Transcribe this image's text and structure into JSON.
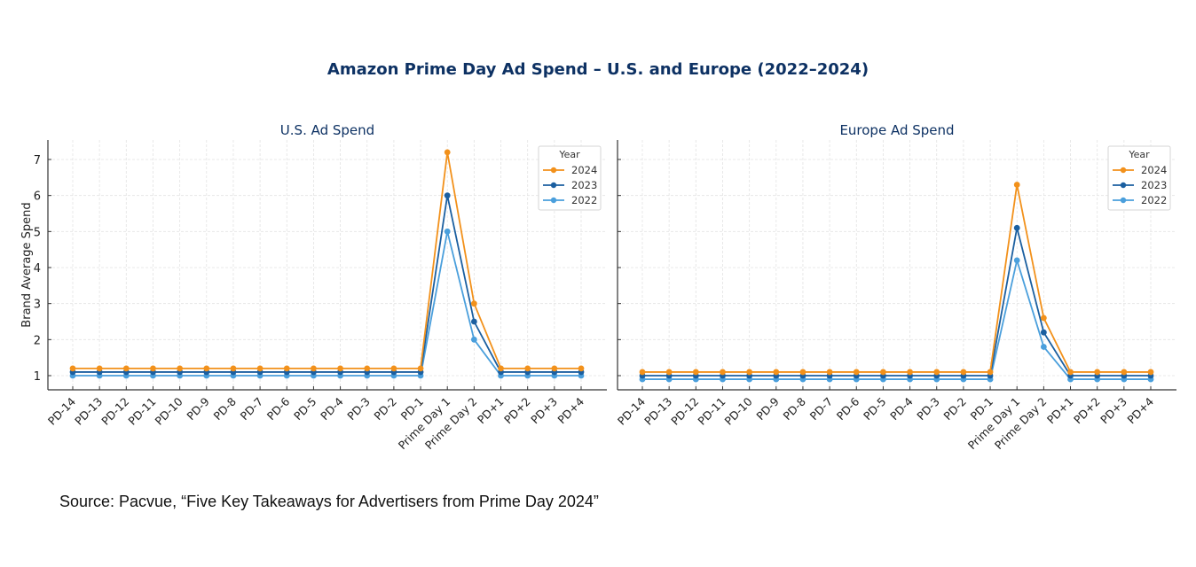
{
  "title": "Amazon Prime Day Ad Spend – U.S. and Europe (2022–2024)",
  "source": "Source: Pacvue, “Five Key Takeaways for Advertisers from Prime Day 2024”",
  "colors": {
    "2024": "#f2911b",
    "2023": "#1b5fa0",
    "2022": "#4a9fdc",
    "title": "#0d3163"
  },
  "chart_data": [
    {
      "type": "line",
      "title": "U.S. Ad Spend",
      "xlabel": "",
      "ylabel": "Brand Average Spend",
      "ylim": [
        0.6,
        7.55
      ],
      "yticks": [
        1,
        2,
        3,
        4,
        5,
        6,
        7
      ],
      "grid": true,
      "legend": {
        "title": "Year",
        "placement": "top-right"
      },
      "categories": [
        "PD-14",
        "PD-13",
        "PD-12",
        "PD-11",
        "PD-10",
        "PD-9",
        "PD-8",
        "PD-7",
        "PD-6",
        "PD-5",
        "PD-4",
        "PD-3",
        "PD-2",
        "PD-1",
        "Prime Day 1",
        "Prime Day 2",
        "PD+1",
        "PD+2",
        "PD+3",
        "PD+4"
      ],
      "series": [
        {
          "name": "2024",
          "values": [
            1.2,
            1.2,
            1.2,
            1.2,
            1.2,
            1.2,
            1.2,
            1.2,
            1.2,
            1.2,
            1.2,
            1.2,
            1.2,
            1.2,
            7.2,
            3.0,
            1.2,
            1.2,
            1.2,
            1.2
          ]
        },
        {
          "name": "2023",
          "values": [
            1.1,
            1.1,
            1.1,
            1.1,
            1.1,
            1.1,
            1.1,
            1.1,
            1.1,
            1.1,
            1.1,
            1.1,
            1.1,
            1.1,
            6.0,
            2.5,
            1.1,
            1.1,
            1.1,
            1.1
          ]
        },
        {
          "name": "2022",
          "values": [
            1.0,
            1.0,
            1.0,
            1.0,
            1.0,
            1.0,
            1.0,
            1.0,
            1.0,
            1.0,
            1.0,
            1.0,
            1.0,
            1.0,
            5.0,
            2.0,
            1.0,
            1.0,
            1.0,
            1.0
          ]
        }
      ]
    },
    {
      "type": "line",
      "title": "Europe Ad Spend",
      "xlabel": "",
      "ylabel": "",
      "ylim": [
        0.6,
        7.55
      ],
      "yticks": [
        1,
        2,
        3,
        4,
        5,
        6,
        7
      ],
      "grid": true,
      "legend": {
        "title": "Year",
        "placement": "top-right"
      },
      "categories": [
        "PD-14",
        "PD-13",
        "PD-12",
        "PD-11",
        "PD-10",
        "PD-9",
        "PD-8",
        "PD-7",
        "PD-6",
        "PD-5",
        "PD-4",
        "PD-3",
        "PD-2",
        "PD-1",
        "Prime Day 1",
        "Prime Day 2",
        "PD+1",
        "PD+2",
        "PD+3",
        "PD+4"
      ],
      "series": [
        {
          "name": "2024",
          "values": [
            1.1,
            1.1,
            1.1,
            1.1,
            1.1,
            1.1,
            1.1,
            1.1,
            1.1,
            1.1,
            1.1,
            1.1,
            1.1,
            1.1,
            6.3,
            2.6,
            1.1,
            1.1,
            1.1,
            1.1
          ]
        },
        {
          "name": "2023",
          "values": [
            1.0,
            1.0,
            1.0,
            1.0,
            1.0,
            1.0,
            1.0,
            1.0,
            1.0,
            1.0,
            1.0,
            1.0,
            1.0,
            1.0,
            5.1,
            2.2,
            1.0,
            1.0,
            1.0,
            1.0
          ]
        },
        {
          "name": "2022",
          "values": [
            0.9,
            0.9,
            0.9,
            0.9,
            0.9,
            0.9,
            0.9,
            0.9,
            0.9,
            0.9,
            0.9,
            0.9,
            0.9,
            0.9,
            4.2,
            1.8,
            0.9,
            0.9,
            0.9,
            0.9
          ]
        }
      ]
    }
  ]
}
